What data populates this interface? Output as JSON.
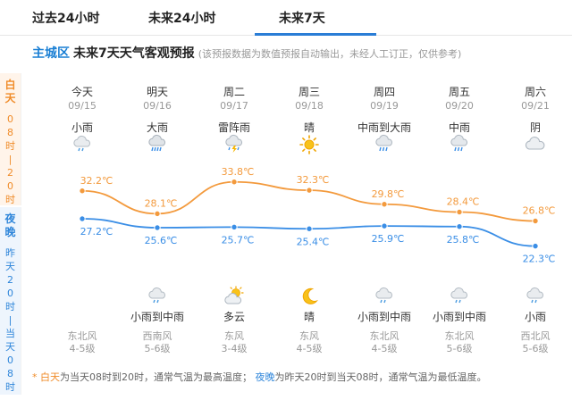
{
  "tabs": [
    {
      "label": "过去24小时"
    },
    {
      "label": "未来24小时"
    },
    {
      "label": "未来7天"
    }
  ],
  "header": {
    "region": "主城区",
    "title": "未来7天天气客观预报",
    "note": "(该预报数据为数值预报自动输出，未经人工订正，仅供参考)"
  },
  "side": {
    "day_label": "白天",
    "day_chars": [
      "0",
      "8",
      "时",
      "|",
      "2",
      "0",
      "时"
    ],
    "night_label": "夜晚",
    "night_chars": [
      "昨",
      "天",
      "2",
      "0",
      "时",
      "|",
      "当",
      "天",
      "0",
      "8",
      "时"
    ]
  },
  "days": [
    {
      "name": "今天",
      "date": "09/15",
      "day_weather": "小雨",
      "day_icon": "light-rain-icon",
      "high": "32.2℃",
      "low": "27.2℃",
      "night_weather": "",
      "night_icon": "",
      "wind_dir": "东北风",
      "wind_level": "4-5级"
    },
    {
      "name": "明天",
      "date": "09/16",
      "day_weather": "大雨",
      "day_icon": "heavy-rain-icon",
      "high": "28.1℃",
      "low": "25.6℃",
      "night_weather": "小雨到中雨",
      "night_icon": "light-rain-icon",
      "wind_dir": "西南风",
      "wind_level": "5-6级"
    },
    {
      "name": "周二",
      "date": "09/17",
      "day_weather": "雷阵雨",
      "day_icon": "thunderstorm-icon",
      "high": "33.8℃",
      "low": "25.7℃",
      "night_weather": "多云",
      "night_icon": "partly-cloudy-night-icon",
      "wind_dir": "东风",
      "wind_level": "3-4级"
    },
    {
      "name": "周三",
      "date": "09/18",
      "day_weather": "晴",
      "day_icon": "sun-icon",
      "high": "32.3℃",
      "low": "25.4℃",
      "night_weather": "晴",
      "night_icon": "moon-icon",
      "wind_dir": "东风",
      "wind_level": "4-5级"
    },
    {
      "name": "周四",
      "date": "09/19",
      "day_weather": "中雨到大雨",
      "day_icon": "moderate-rain-icon",
      "high": "29.8℃",
      "low": "25.9℃",
      "night_weather": "小雨到中雨",
      "night_icon": "light-rain-icon",
      "wind_dir": "东北风",
      "wind_level": "4-5级"
    },
    {
      "name": "周五",
      "date": "09/20",
      "day_weather": "中雨",
      "day_icon": "moderate-rain-icon",
      "high": "28.4℃",
      "low": "25.8℃",
      "night_weather": "小雨到中雨",
      "night_icon": "light-rain-icon",
      "wind_dir": "东北风",
      "wind_level": "5-6级"
    },
    {
      "name": "周六",
      "date": "09/21",
      "day_weather": "阴",
      "day_icon": "overcast-icon",
      "high": "26.8℃",
      "low": "22.3℃",
      "night_weather": "小雨",
      "night_icon": "light-rain-icon",
      "wind_dir": "西北风",
      "wind_level": "5-6级"
    }
  ],
  "chart_data": {
    "type": "line",
    "x": [
      "09/15",
      "09/16",
      "09/17",
      "09/18",
      "09/19",
      "09/20",
      "09/21"
    ],
    "series": [
      {
        "values": [
          32.2,
          28.1,
          33.8,
          32.3,
          29.8,
          28.4,
          26.8
        ],
        "color": "#f39a3d"
      },
      {
        "values": [
          27.2,
          25.6,
          25.7,
          25.4,
          25.9,
          25.8,
          22.3
        ],
        "color": "#3a8ee6"
      }
    ],
    "title": "",
    "xlabel": "",
    "ylabel": ""
  },
  "footer": {
    "star": "*",
    "day_word": "白天",
    "day_text": "为当天08时到20时，通常气温为最高温度；",
    "night_word": "夜晚",
    "night_text": "为昨天20时到当天08时，通常气温为最低温度。"
  },
  "colors": {
    "accent": "#2a7dd6",
    "high_line": "#f39a3d",
    "low_line": "#3a8ee6",
    "day_bg": "#fff4ea",
    "night_bg": "#eef5fd"
  }
}
